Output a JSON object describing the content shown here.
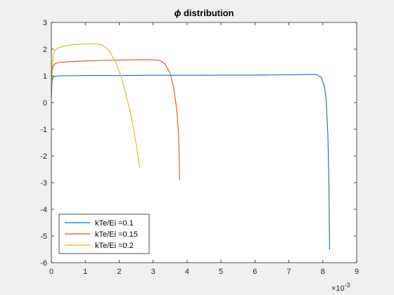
{
  "chart_data": {
    "type": "line",
    "title_symbol": "ϕ",
    "title_rest": " distribution",
    "xlabel": "",
    "ylabel": "",
    "xlim": [
      0,
      9
    ],
    "ylim": [
      -6,
      3
    ],
    "x_ticks": [
      0,
      1,
      2,
      3,
      4,
      5,
      6,
      7,
      8,
      9
    ],
    "x_tick_labels": [
      "0",
      "1",
      "2",
      "3",
      "4",
      "5",
      "6",
      "7",
      "8",
      "9"
    ],
    "y_ticks": [
      3,
      2,
      1,
      0,
      -1,
      -2,
      -3,
      -4,
      -5,
      -6
    ],
    "y_tick_labels": [
      "3",
      "2",
      "1",
      "0",
      "-1",
      "-2",
      "-3",
      "-4",
      "-5",
      "-6"
    ],
    "x_exponent_base": "×10",
    "x_exponent_power": "-3",
    "grid": false,
    "legend_position": "bottom-left",
    "series": [
      {
        "name": "kTe/Ei =0.1",
        "color": "#0072bd",
        "x": [
          0,
          0.02,
          0.05,
          0.1,
          0.2,
          0.4,
          1,
          2,
          3,
          4,
          5,
          6,
          7,
          7.5,
          7.8,
          7.95,
          8.05,
          8.1,
          8.15,
          8.18,
          8.2
        ],
        "y": [
          0.2,
          0.8,
          0.95,
          0.98,
          1.0,
          1.0,
          1.01,
          1.01,
          1.02,
          1.02,
          1.03,
          1.03,
          1.04,
          1.05,
          1.05,
          0.95,
          0.6,
          0.1,
          -1.2,
          -3.0,
          -5.5
        ]
      },
      {
        "name": "kTe/Ei =0.15",
        "color": "#d95319",
        "x": [
          0,
          0.02,
          0.05,
          0.1,
          0.2,
          0.5,
          1,
          1.5,
          2,
          2.5,
          3,
          3.2,
          3.35,
          3.5,
          3.6,
          3.7,
          3.75,
          3.77,
          3.78
        ],
        "y": [
          0.4,
          1.1,
          1.35,
          1.45,
          1.5,
          1.53,
          1.56,
          1.58,
          1.59,
          1.6,
          1.6,
          1.58,
          1.45,
          1.1,
          0.6,
          -0.3,
          -1.2,
          -2.2,
          -2.9
        ]
      },
      {
        "name": "kTe/Ei =0.2",
        "color": "#edb120",
        "x": [
          0,
          0.03,
          0.06,
          0.1,
          0.2,
          0.4,
          0.7,
          1,
          1.3,
          1.5,
          1.7,
          1.9,
          2.05,
          2.2,
          2.35,
          2.45,
          2.52,
          2.56,
          2.6
        ],
        "y": [
          0.4,
          1.5,
          1.8,
          1.95,
          2.05,
          2.12,
          2.18,
          2.2,
          2.2,
          2.16,
          1.95,
          1.5,
          1.0,
          0.3,
          -0.5,
          -1.2,
          -1.7,
          -2.1,
          -2.45
        ]
      }
    ]
  }
}
